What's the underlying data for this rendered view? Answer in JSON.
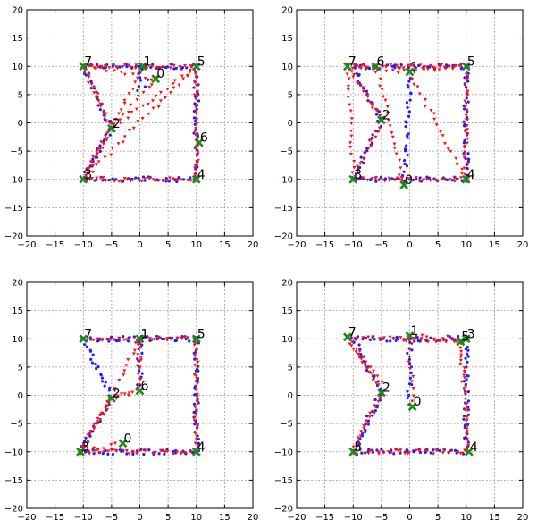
{
  "chart_data": [
    {
      "type": "scatter",
      "title": "",
      "xlabel": "",
      "ylabel": "",
      "xlim": [
        -20,
        20
      ],
      "ylim": [
        -20,
        20
      ],
      "xticks": [
        -20,
        -15,
        -10,
        -5,
        0,
        5,
        10,
        15,
        20
      ],
      "yticks": [
        -20,
        -15,
        -10,
        -5,
        0,
        5,
        10,
        15,
        20
      ],
      "grid": true,
      "colors": {
        "blue": "#1f1fff",
        "red": "#ff1010",
        "node": "#1a8a1a"
      },
      "nodes": [
        {
          "label": "0",
          "x": 2.8,
          "y": 7.8
        },
        {
          "label": "1",
          "x": 0.5,
          "y": 10
        },
        {
          "label": "2",
          "x": -5,
          "y": -1
        },
        {
          "label": "3",
          "x": -10,
          "y": -10
        },
        {
          "label": "4",
          "x": 10,
          "y": -10
        },
        {
          "label": "5",
          "x": 10,
          "y": 10
        },
        {
          "label": "6",
          "x": 10.5,
          "y": -3.5
        },
        {
          "label": "7",
          "x": -10,
          "y": 10
        }
      ],
      "blue_path": [
        [
          -10,
          10
        ],
        [
          10,
          10
        ],
        [
          10,
          -10
        ],
        [
          -10,
          -10
        ],
        [
          -5,
          -1
        ],
        [
          -10,
          10
        ]
      ],
      "blue_extra": [
        [
          0,
          10
        ],
        [
          0,
          6
        ],
        [
          3,
          8
        ]
      ],
      "red_path": [
        [
          -10,
          10
        ],
        [
          10,
          10
        ],
        [
          10,
          -10
        ],
        [
          -10,
          -10
        ],
        [
          -5,
          -1
        ],
        [
          -10,
          10
        ]
      ],
      "red_rays": [
        [
          [
            2.8,
            7.8
          ],
          [
            -10,
            10
          ]
        ],
        [
          [
            2.8,
            7.8
          ],
          [
            -5,
            -1
          ]
        ],
        [
          [
            10,
            10
          ],
          [
            -5,
            -1
          ]
        ],
        [
          [
            0.5,
            10
          ],
          [
            -10,
            -10
          ]
        ],
        [
          [
            10,
            10
          ],
          [
            -10,
            -10
          ]
        ]
      ]
    },
    {
      "type": "scatter",
      "title": "",
      "xlabel": "",
      "ylabel": "",
      "xlim": [
        -20,
        20
      ],
      "ylim": [
        -20,
        20
      ],
      "xticks": [
        -20,
        -15,
        -10,
        -5,
        0,
        5,
        10,
        15,
        20
      ],
      "yticks": [
        -20,
        -15,
        -10,
        -5,
        0,
        5,
        10,
        15,
        20
      ],
      "grid": true,
      "colors": {
        "blue": "#1f1fff",
        "red": "#ff1010",
        "node": "#1a8a1a"
      },
      "nodes": [
        {
          "label": "0",
          "x": -1,
          "y": -11
        },
        {
          "label": "1",
          "x": 0,
          "y": 9
        },
        {
          "label": "2",
          "x": -5,
          "y": 0.5
        },
        {
          "label": "3",
          "x": -10,
          "y": -10
        },
        {
          "label": "4",
          "x": 10,
          "y": -10
        },
        {
          "label": "5",
          "x": 10,
          "y": 10
        },
        {
          "label": "6",
          "x": -6,
          "y": 10
        },
        {
          "label": "7",
          "x": -11,
          "y": 10
        }
      ],
      "blue_path": [
        [
          -10,
          10
        ],
        [
          10,
          10
        ],
        [
          10,
          -10
        ],
        [
          -10,
          -10
        ],
        [
          -5,
          0.5
        ],
        [
          -10,
          10
        ]
      ],
      "blue_extra": [
        [
          0,
          9
        ],
        [
          -1,
          -10
        ]
      ],
      "red_path": [
        [
          -11,
          10
        ],
        [
          10,
          10
        ],
        [
          10,
          -10
        ],
        [
          -10,
          -10
        ],
        [
          -5,
          0.5
        ],
        [
          -11,
          10
        ]
      ],
      "red_rays": [
        [
          [
            -11,
            10
          ],
          [
            0,
            9
          ]
        ],
        [
          [
            0,
            9
          ],
          [
            10,
            10
          ]
        ],
        [
          [
            -6,
            10
          ],
          [
            -1,
            -11
          ]
        ],
        [
          [
            -11,
            10
          ],
          [
            -10,
            -10
          ]
        ],
        [
          [
            0,
            9
          ],
          [
            10,
            -10
          ]
        ]
      ]
    },
    {
      "type": "scatter",
      "title": "",
      "xlabel": "",
      "ylabel": "",
      "xlim": [
        -20,
        20
      ],
      "ylim": [
        -20,
        20
      ],
      "xticks": [
        -20,
        -15,
        -10,
        -5,
        0,
        5,
        10,
        15,
        20
      ],
      "yticks": [
        -20,
        -15,
        -10,
        -5,
        0,
        5,
        10,
        15,
        20
      ],
      "grid": true,
      "colors": {
        "blue": "#1f1fff",
        "red": "#ff1010",
        "node": "#1a8a1a"
      },
      "nodes": [
        {
          "label": "0",
          "x": -3,
          "y": -8.5
        },
        {
          "label": "1",
          "x": 0,
          "y": 10
        },
        {
          "label": "2",
          "x": -5,
          "y": -0.5
        },
        {
          "label": "3",
          "x": -10.5,
          "y": -10
        },
        {
          "label": "4",
          "x": 10,
          "y": -10
        },
        {
          "label": "5",
          "x": 10,
          "y": 10
        },
        {
          "label": "6",
          "x": 0,
          "y": 0.8
        },
        {
          "label": "7",
          "x": -10,
          "y": 10
        }
      ],
      "blue_path": [
        [
          -10,
          10
        ],
        [
          10,
          10
        ],
        [
          10,
          -10
        ],
        [
          -10.5,
          -10
        ],
        [
          -5,
          -0.5
        ],
        [
          -10,
          10
        ]
      ],
      "blue_extra": [
        [
          0,
          10
        ],
        [
          0,
          0.8
        ]
      ],
      "red_path": [
        [
          -10,
          10
        ],
        [
          10,
          10
        ],
        [
          10,
          -10
        ],
        [
          -10.5,
          -10
        ],
        [
          -5,
          -0.5
        ],
        [
          0,
          0.8
        ],
        [
          0,
          10
        ]
      ],
      "red_rays": [
        [
          [
            -10.5,
            -10
          ],
          [
            -3,
            -8.5
          ]
        ],
        [
          [
            -5,
            -0.5
          ],
          [
            0,
            10
          ]
        ],
        [
          [
            -10.5,
            -10
          ],
          [
            -5,
            -0.5
          ]
        ]
      ]
    },
    {
      "type": "scatter",
      "title": "",
      "xlabel": "",
      "ylabel": "",
      "xlim": [
        -20,
        20
      ],
      "ylim": [
        -20,
        20
      ],
      "xticks": [
        -20,
        -15,
        -10,
        -5,
        0,
        5,
        10,
        15,
        20
      ],
      "yticks": [
        -20,
        -15,
        -10,
        -5,
        0,
        5,
        10,
        15,
        20
      ],
      "grid": true,
      "colors": {
        "blue": "#1f1fff",
        "red": "#ff1010",
        "node": "#1a8a1a"
      },
      "nodes": [
        {
          "label": "0",
          "x": 0.5,
          "y": -2
        },
        {
          "label": "1",
          "x": 0,
          "y": 10.5
        },
        {
          "label": "2",
          "x": -5,
          "y": 0.5
        },
        {
          "label": "3",
          "x": 10,
          "y": 10
        },
        {
          "label": "4",
          "x": 10.5,
          "y": -10
        },
        {
          "label": "5",
          "x": -10,
          "y": -10
        },
        {
          "label": "7",
          "x": -11,
          "y": 10.3
        },
        {
          "label": "5",
          "x": 9,
          "y": 9.5
        }
      ],
      "blue_path": [
        [
          -10,
          10
        ],
        [
          10,
          10
        ],
        [
          10,
          -10
        ],
        [
          -10,
          -10
        ],
        [
          -5,
          0.5
        ],
        [
          -10,
          10
        ]
      ],
      "blue_extra": [
        [
          0,
          10
        ],
        [
          0,
          -2
        ]
      ],
      "red_path": [
        [
          -11,
          10.3
        ],
        [
          9,
          9.5
        ],
        [
          10.5,
          -10
        ],
        [
          -10,
          -10
        ],
        [
          -5,
          0.5
        ],
        [
          -11,
          10.3
        ]
      ],
      "red_rays": [
        [
          [
            0,
            10.5
          ],
          [
            0.5,
            -2
          ]
        ],
        [
          [
            -11,
            10.3
          ],
          [
            -4,
            1.5
          ]
        ],
        [
          [
            0,
            10.5
          ],
          [
            10,
            10
          ]
        ]
      ]
    }
  ]
}
